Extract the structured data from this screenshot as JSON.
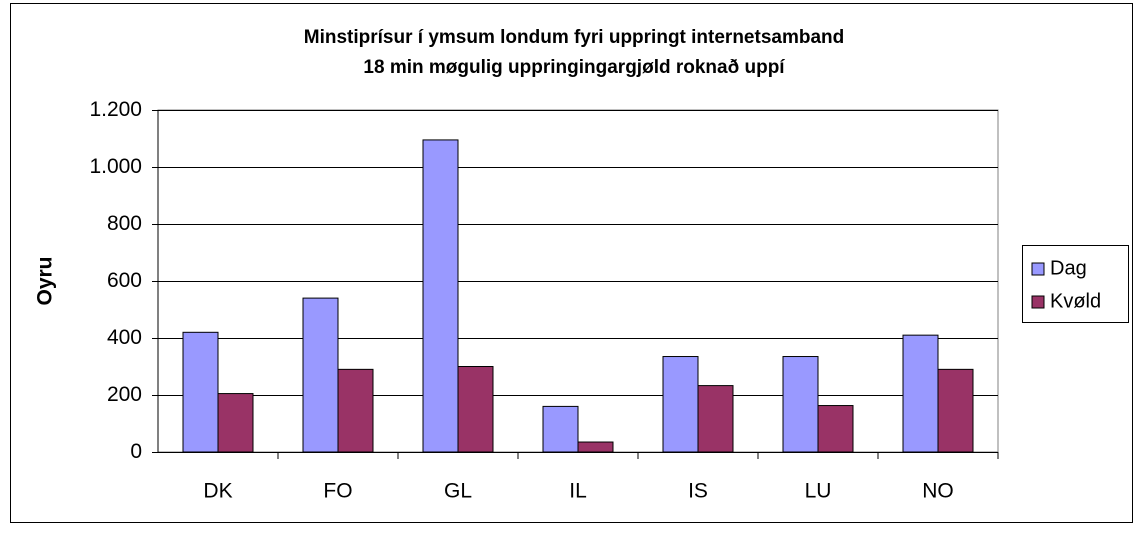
{
  "chart_data": {
    "type": "bar",
    "title": "Minstiprísur í ymsum londum fyri uppringt internetsamband",
    "subtitle": "18 min møgulig uppringingargjøld roknað uppí",
    "ylabel": "Oyru",
    "categories": [
      "DK",
      "FO",
      "GL",
      "IL",
      "IS",
      "LU",
      "NO"
    ],
    "series": [
      {
        "name": "Dag",
        "color": "#9999ff",
        "values": [
          420,
          540,
          1095,
          160,
          335,
          335,
          410
        ]
      },
      {
        "name": "Kvøld",
        "color": "#993366",
        "values": [
          205,
          290,
          300,
          35,
          233,
          163,
          290
        ]
      }
    ],
    "ylim": [
      0,
      1200
    ],
    "yticks": [
      0,
      200,
      400,
      600,
      800,
      {
        "value": 1000,
        "label": "1.000"
      },
      {
        "value": 1200,
        "label": "1.200"
      }
    ],
    "grid": true,
    "legend": "right"
  }
}
